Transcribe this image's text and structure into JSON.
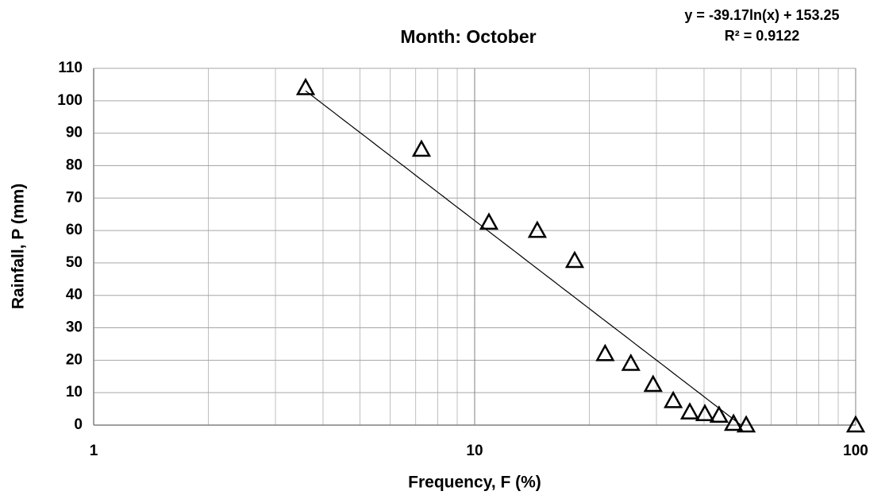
{
  "chart_data": {
    "type": "scatter",
    "title": "Month: October",
    "annotations": [
      "y = -39.17ln(x) + 153.25",
      "R² = 0.9122"
    ],
    "x_label": "Frequency, F (%)",
    "y_label": "Rainfall, P (mm)",
    "x": [
      3.6,
      7.25,
      10.9,
      14.6,
      18.3,
      22.0,
      25.7,
      29.4,
      33.2,
      36.7,
      40.2,
      43.8,
      47.8,
      51.6,
      100
    ],
    "values": [
      104,
      85,
      62.5,
      60,
      50.7,
      22,
      19,
      12.5,
      7.5,
      4,
      3.5,
      3,
      0.5,
      0,
      0
    ],
    "color": "#000000",
    "xscale": "log",
    "xlim": [
      1,
      100
    ],
    "xticks": [
      1,
      10,
      100
    ],
    "ylim": [
      0,
      110
    ],
    "yticks": [
      0,
      10,
      20,
      30,
      40,
      50,
      60,
      70,
      80,
      90,
      100,
      110
    ],
    "grid": true
  }
}
